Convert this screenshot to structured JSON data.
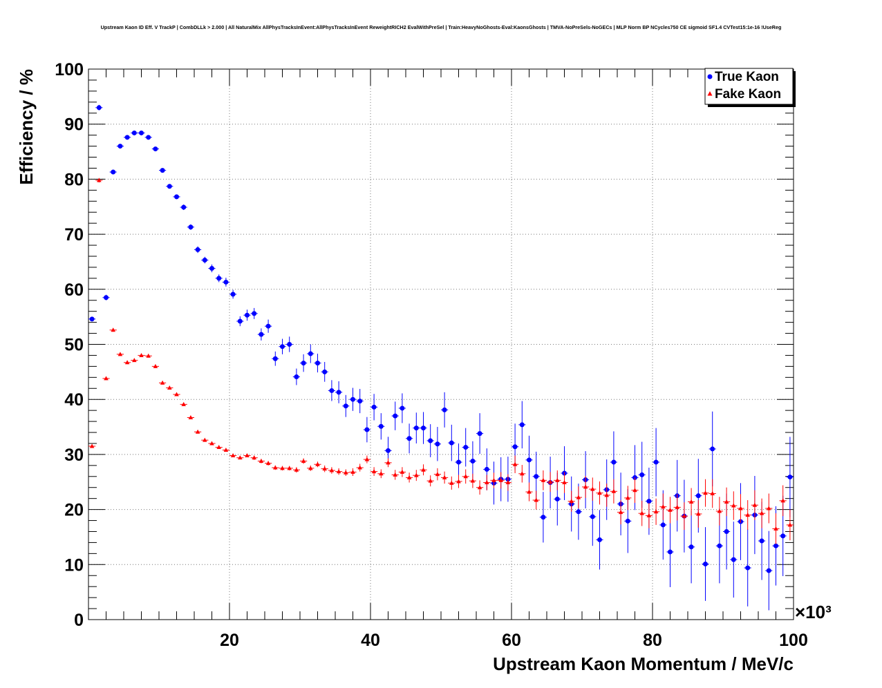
{
  "chart_data": {
    "type": "scatter",
    "title": "Upstream Kaon ID Eff. V TrackP | CombDLLk > 2.000 | All NaturalMix AllPhysTracksInEvent:AllPhysTracksInEvent ReweightRICH2 EvalWithPreSel | Train:HeavyNoGhosts-Eval:KaonsGhosts | TMVA-NoPreSels-NoGECs | MLP Norm BP NCycles750 CE sigmoid SF1.4 CVTest15:1e-16 !UseReg",
    "xlabel": "Upstream Kaon Momentum / MeV/c",
    "ylabel": "Efficiency / %",
    "x_multiplier": "×10³",
    "xlim": [
      0,
      100
    ],
    "ylim": [
      0,
      100
    ],
    "xticks": [
      20,
      40,
      60,
      80,
      100
    ],
    "yticks": [
      0,
      10,
      20,
      30,
      40,
      50,
      60,
      70,
      80,
      90,
      100
    ],
    "grid": true,
    "legend_position": "top-right",
    "series": [
      {
        "name": "True Kaon",
        "color": "#0000ff",
        "marker": "circle",
        "x": [
          0.5,
          1.5,
          2.5,
          3.5,
          4.5,
          5.5,
          6.5,
          7.5,
          8.5,
          9.5,
          10.5,
          11.5,
          12.5,
          13.5,
          14.5,
          15.5,
          16.5,
          17.5,
          18.5,
          19.5,
          20.5,
          21.5,
          22.5,
          23.5,
          24.5,
          25.5,
          26.5,
          27.5,
          28.5,
          29.5,
          30.5,
          31.5,
          32.5,
          33.5,
          34.5,
          35.5,
          36.5,
          37.5,
          38.5,
          39.5,
          40.5,
          41.5,
          42.5,
          43.5,
          44.5,
          45.5,
          46.5,
          47.5,
          48.5,
          49.5,
          50.5,
          51.5,
          52.5,
          53.5,
          54.5,
          55.5,
          56.5,
          57.5,
          58.5,
          59.5,
          60.5,
          61.5,
          62.5,
          63.5,
          64.5,
          65.5,
          66.5,
          67.5,
          68.5,
          69.5,
          70.5,
          71.5,
          72.5,
          73.5,
          74.5,
          75.5,
          76.5,
          77.5,
          78.5,
          79.5,
          80.5,
          81.5,
          82.5,
          83.5,
          84.5,
          85.5,
          86.5,
          87.5,
          88.5,
          89.5,
          90.5,
          91.5,
          92.5,
          93.5,
          94.5,
          95.5,
          96.5,
          97.5,
          98.5,
          99.5
        ],
        "y": [
          54.6,
          93.0,
          58.5,
          81.3,
          86.0,
          87.6,
          88.4,
          88.4,
          87.6,
          85.5,
          81.6,
          78.7,
          76.8,
          74.9,
          71.3,
          67.2,
          65.3,
          63.8,
          62.0,
          61.3,
          59.1,
          54.2,
          55.3,
          55.6,
          51.8,
          53.3,
          47.4,
          49.6,
          50.0,
          44.1,
          46.6,
          48.3,
          46.6,
          45.0,
          41.6,
          41.3,
          38.8,
          40.0,
          39.7,
          34.5,
          38.6,
          35.1,
          30.7,
          37.0,
          38.4,
          32.9,
          34.8,
          34.8,
          32.5,
          31.9,
          38.1,
          32.1,
          28.6,
          31.3,
          28.8,
          33.8,
          27.3,
          24.8,
          25.5,
          25.5,
          31.4,
          35.4,
          29.0,
          26.0,
          18.6,
          24.9,
          21.9,
          26.6,
          21.0,
          19.6,
          25.4,
          18.7,
          14.5,
          23.6,
          28.6,
          21.0,
          17.9,
          25.8,
          26.3,
          21.5,
          28.6,
          17.2,
          12.3,
          22.5,
          18.8,
          13.2,
          22.5,
          10.1,
          31.0,
          13.4,
          16.0,
          10.9,
          17.8,
          9.4,
          19.0,
          14.3,
          8.9,
          13.4,
          15.2,
          25.9
        ],
        "y_err": [
          0.4,
          0.5,
          0.5,
          0.4,
          0.4,
          0.4,
          0.4,
          0.4,
          0.4,
          0.4,
          0.4,
          0.4,
          0.4,
          0.5,
          0.5,
          0.6,
          0.6,
          0.7,
          0.7,
          0.8,
          0.8,
          0.9,
          1.0,
          1.0,
          1.1,
          1.2,
          1.3,
          1.4,
          1.4,
          1.5,
          1.6,
          1.7,
          1.7,
          1.8,
          1.9,
          2.0,
          2.0,
          2.1,
          2.2,
          2.3,
          2.4,
          2.4,
          2.5,
          2.6,
          2.7,
          2.7,
          2.8,
          2.9,
          3.0,
          3.1,
          3.2,
          3.3,
          3.4,
          3.5,
          3.6,
          3.7,
          3.8,
          3.9,
          4.0,
          4.1,
          4.2,
          4.3,
          4.4,
          4.5,
          4.6,
          4.7,
          4.8,
          4.9,
          5.0,
          5.1,
          5.2,
          5.3,
          5.4,
          5.5,
          5.6,
          5.7,
          5.8,
          5.9,
          6.0,
          6.1,
          6.2,
          6.3,
          6.4,
          6.5,
          6.6,
          6.6,
          6.7,
          6.7,
          6.8,
          6.8,
          6.9,
          6.9,
          7.0,
          7.0,
          7.1,
          7.1,
          7.2,
          7.2,
          7.3,
          7.3
        ]
      },
      {
        "name": "Fake Kaon",
        "color": "#ff0000",
        "marker": "triangle",
        "x": [
          0.5,
          1.5,
          2.5,
          3.5,
          4.5,
          5.5,
          6.5,
          7.5,
          8.5,
          9.5,
          10.5,
          11.5,
          12.5,
          13.5,
          14.5,
          15.5,
          16.5,
          17.5,
          18.5,
          19.5,
          20.5,
          21.5,
          22.5,
          23.5,
          24.5,
          25.5,
          26.5,
          27.5,
          28.5,
          29.5,
          30.5,
          31.5,
          32.5,
          33.5,
          34.5,
          35.5,
          36.5,
          37.5,
          38.5,
          39.5,
          40.5,
          41.5,
          42.5,
          43.5,
          44.5,
          45.5,
          46.5,
          47.5,
          48.5,
          49.5,
          50.5,
          51.5,
          52.5,
          53.5,
          54.5,
          55.5,
          56.5,
          57.5,
          58.5,
          59.5,
          60.5,
          61.5,
          62.5,
          63.5,
          64.5,
          65.5,
          66.5,
          67.5,
          68.5,
          69.5,
          70.5,
          71.5,
          72.5,
          73.5,
          74.5,
          75.5,
          76.5,
          77.5,
          78.5,
          79.5,
          80.5,
          81.5,
          82.5,
          83.5,
          84.5,
          85.5,
          86.5,
          87.5,
          88.5,
          89.5,
          90.5,
          91.5,
          92.5,
          93.5,
          94.5,
          95.5,
          96.5,
          97.5,
          98.5,
          99.5
        ],
        "y": [
          31.5,
          79.8,
          43.8,
          52.6,
          48.2,
          46.7,
          47.1,
          48.0,
          47.9,
          46.0,
          43.0,
          42.1,
          40.9,
          39.1,
          36.7,
          34.1,
          32.6,
          32.0,
          31.3,
          30.8,
          29.8,
          29.4,
          29.8,
          29.4,
          28.8,
          28.4,
          27.6,
          27.5,
          27.5,
          27.2,
          28.8,
          27.5,
          28.2,
          27.4,
          27.1,
          26.9,
          26.7,
          26.8,
          27.6,
          29.1,
          26.9,
          26.5,
          28.5,
          26.3,
          26.8,
          25.8,
          26.2,
          27.2,
          25.2,
          26.4,
          25.8,
          24.8,
          25.1,
          26.0,
          25.2,
          24.0,
          24.9,
          25.3,
          25.3,
          24.9,
          28.2,
          26.5,
          23.2,
          21.7,
          25.3,
          25.0,
          25.3,
          24.9,
          21.5,
          22.2,
          24.1,
          23.7,
          23.0,
          22.6,
          23.3,
          19.5,
          22.1,
          23.5,
          19.3,
          18.9,
          19.6,
          20.5,
          19.9,
          20.4,
          18.8,
          21.4,
          19.2,
          23.0,
          22.9,
          19.7,
          21.4,
          20.7,
          20.2,
          19.0,
          20.8,
          19.3,
          20.2,
          16.5,
          21.6,
          17.2
        ],
        "y_err": [
          0.3,
          0.4,
          0.3,
          0.3,
          0.3,
          0.3,
          0.3,
          0.3,
          0.3,
          0.3,
          0.3,
          0.3,
          0.3,
          0.3,
          0.3,
          0.3,
          0.3,
          0.3,
          0.3,
          0.3,
          0.3,
          0.3,
          0.3,
          0.4,
          0.4,
          0.4,
          0.4,
          0.4,
          0.4,
          0.5,
          0.5,
          0.5,
          0.5,
          0.6,
          0.6,
          0.6,
          0.6,
          0.7,
          0.7,
          0.7,
          0.8,
          0.8,
          0.8,
          0.9,
          0.9,
          0.9,
          1.0,
          1.0,
          1.0,
          1.1,
          1.1,
          1.2,
          1.2,
          1.3,
          1.3,
          1.3,
          1.4,
          1.4,
          1.5,
          1.5,
          1.6,
          1.6,
          1.7,
          1.7,
          1.8,
          1.8,
          1.8,
          1.9,
          1.9,
          2.0,
          2.0,
          2.1,
          2.1,
          2.1,
          2.2,
          2.2,
          2.2,
          2.3,
          2.3,
          2.3,
          2.4,
          2.4,
          2.4,
          2.4,
          2.5,
          2.5,
          2.5,
          2.5,
          2.6,
          2.6,
          2.6,
          2.6,
          2.6,
          2.7,
          2.7,
          2.7,
          2.7,
          2.8,
          2.8,
          2.8
        ]
      }
    ]
  }
}
